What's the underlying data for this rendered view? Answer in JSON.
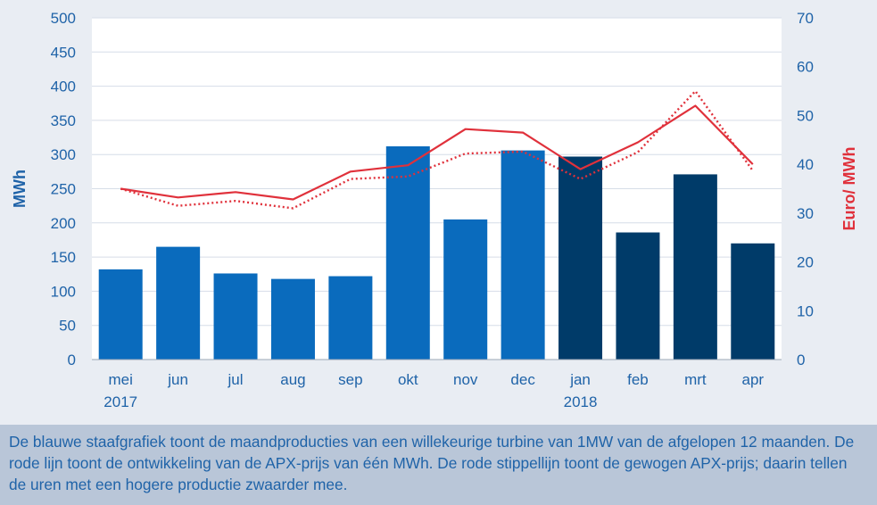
{
  "chart_data": {
    "type": "bar",
    "categories": [
      "mei",
      "jun",
      "jul",
      "aug",
      "sep",
      "okt",
      "nov",
      "dec",
      "jan",
      "feb",
      "mrt",
      "apr"
    ],
    "year_labels": [
      "2017",
      "",
      "",
      "",
      "",
      "",
      "",
      "",
      "2018",
      "",
      "",
      ""
    ],
    "series": [
      {
        "type": "bar",
        "axis": "left",
        "values": [
          132,
          165,
          126,
          118,
          122,
          312,
          205,
          306,
          297,
          186,
          271,
          170
        ],
        "colors": [
          "#0a6bbd",
          "#0a6bbd",
          "#0a6bbd",
          "#0a6bbd",
          "#0a6bbd",
          "#0a6bbd",
          "#0a6bbd",
          "#0a6bbd",
          "#003b69",
          "#003b69",
          "#003b69",
          "#003b69"
        ]
      },
      {
        "type": "line",
        "style": "solid",
        "axis": "right",
        "color": "#e0313b",
        "values": [
          35,
          33.2,
          34.3,
          32.8,
          38.5,
          39.8,
          47.2,
          46.5,
          39,
          44.5,
          52,
          40
        ]
      },
      {
        "type": "line",
        "style": "dotted",
        "axis": "right",
        "color": "#e0313b",
        "values": [
          35,
          31.5,
          32.5,
          31,
          37,
          37.5,
          42.2,
          42.6,
          37,
          42.5,
          55,
          38.7
        ]
      }
    ],
    "ylabel": "MWh",
    "y2label": "Euro/ MWh",
    "ylim": [
      0,
      500
    ],
    "y2lim": [
      0,
      70
    ],
    "yticks": [
      "0",
      "50",
      "100",
      "150",
      "200",
      "250",
      "300",
      "350",
      "400",
      "450",
      "500"
    ],
    "y2ticks": [
      "0",
      "10",
      "20",
      "30",
      "40",
      "50",
      "60",
      "70"
    ],
    "grid": true,
    "colors": {
      "left_axis": "#1f63a8",
      "right_axis": "#e0313b",
      "grid": "#d6dde8",
      "plot_bg": "#ffffff"
    }
  },
  "caption": "De blauwe staafgrafiek toont de maandproducties van een willekeurige turbine van 1MW van de afgelopen 12 maanden. De rode lijn toont de ontwikkeling van de APX-prijs van één MWh. De rode stippellijn toont de gewogen APX-prijs; daarin tellen de uren met een hogere productie zwaarder mee."
}
